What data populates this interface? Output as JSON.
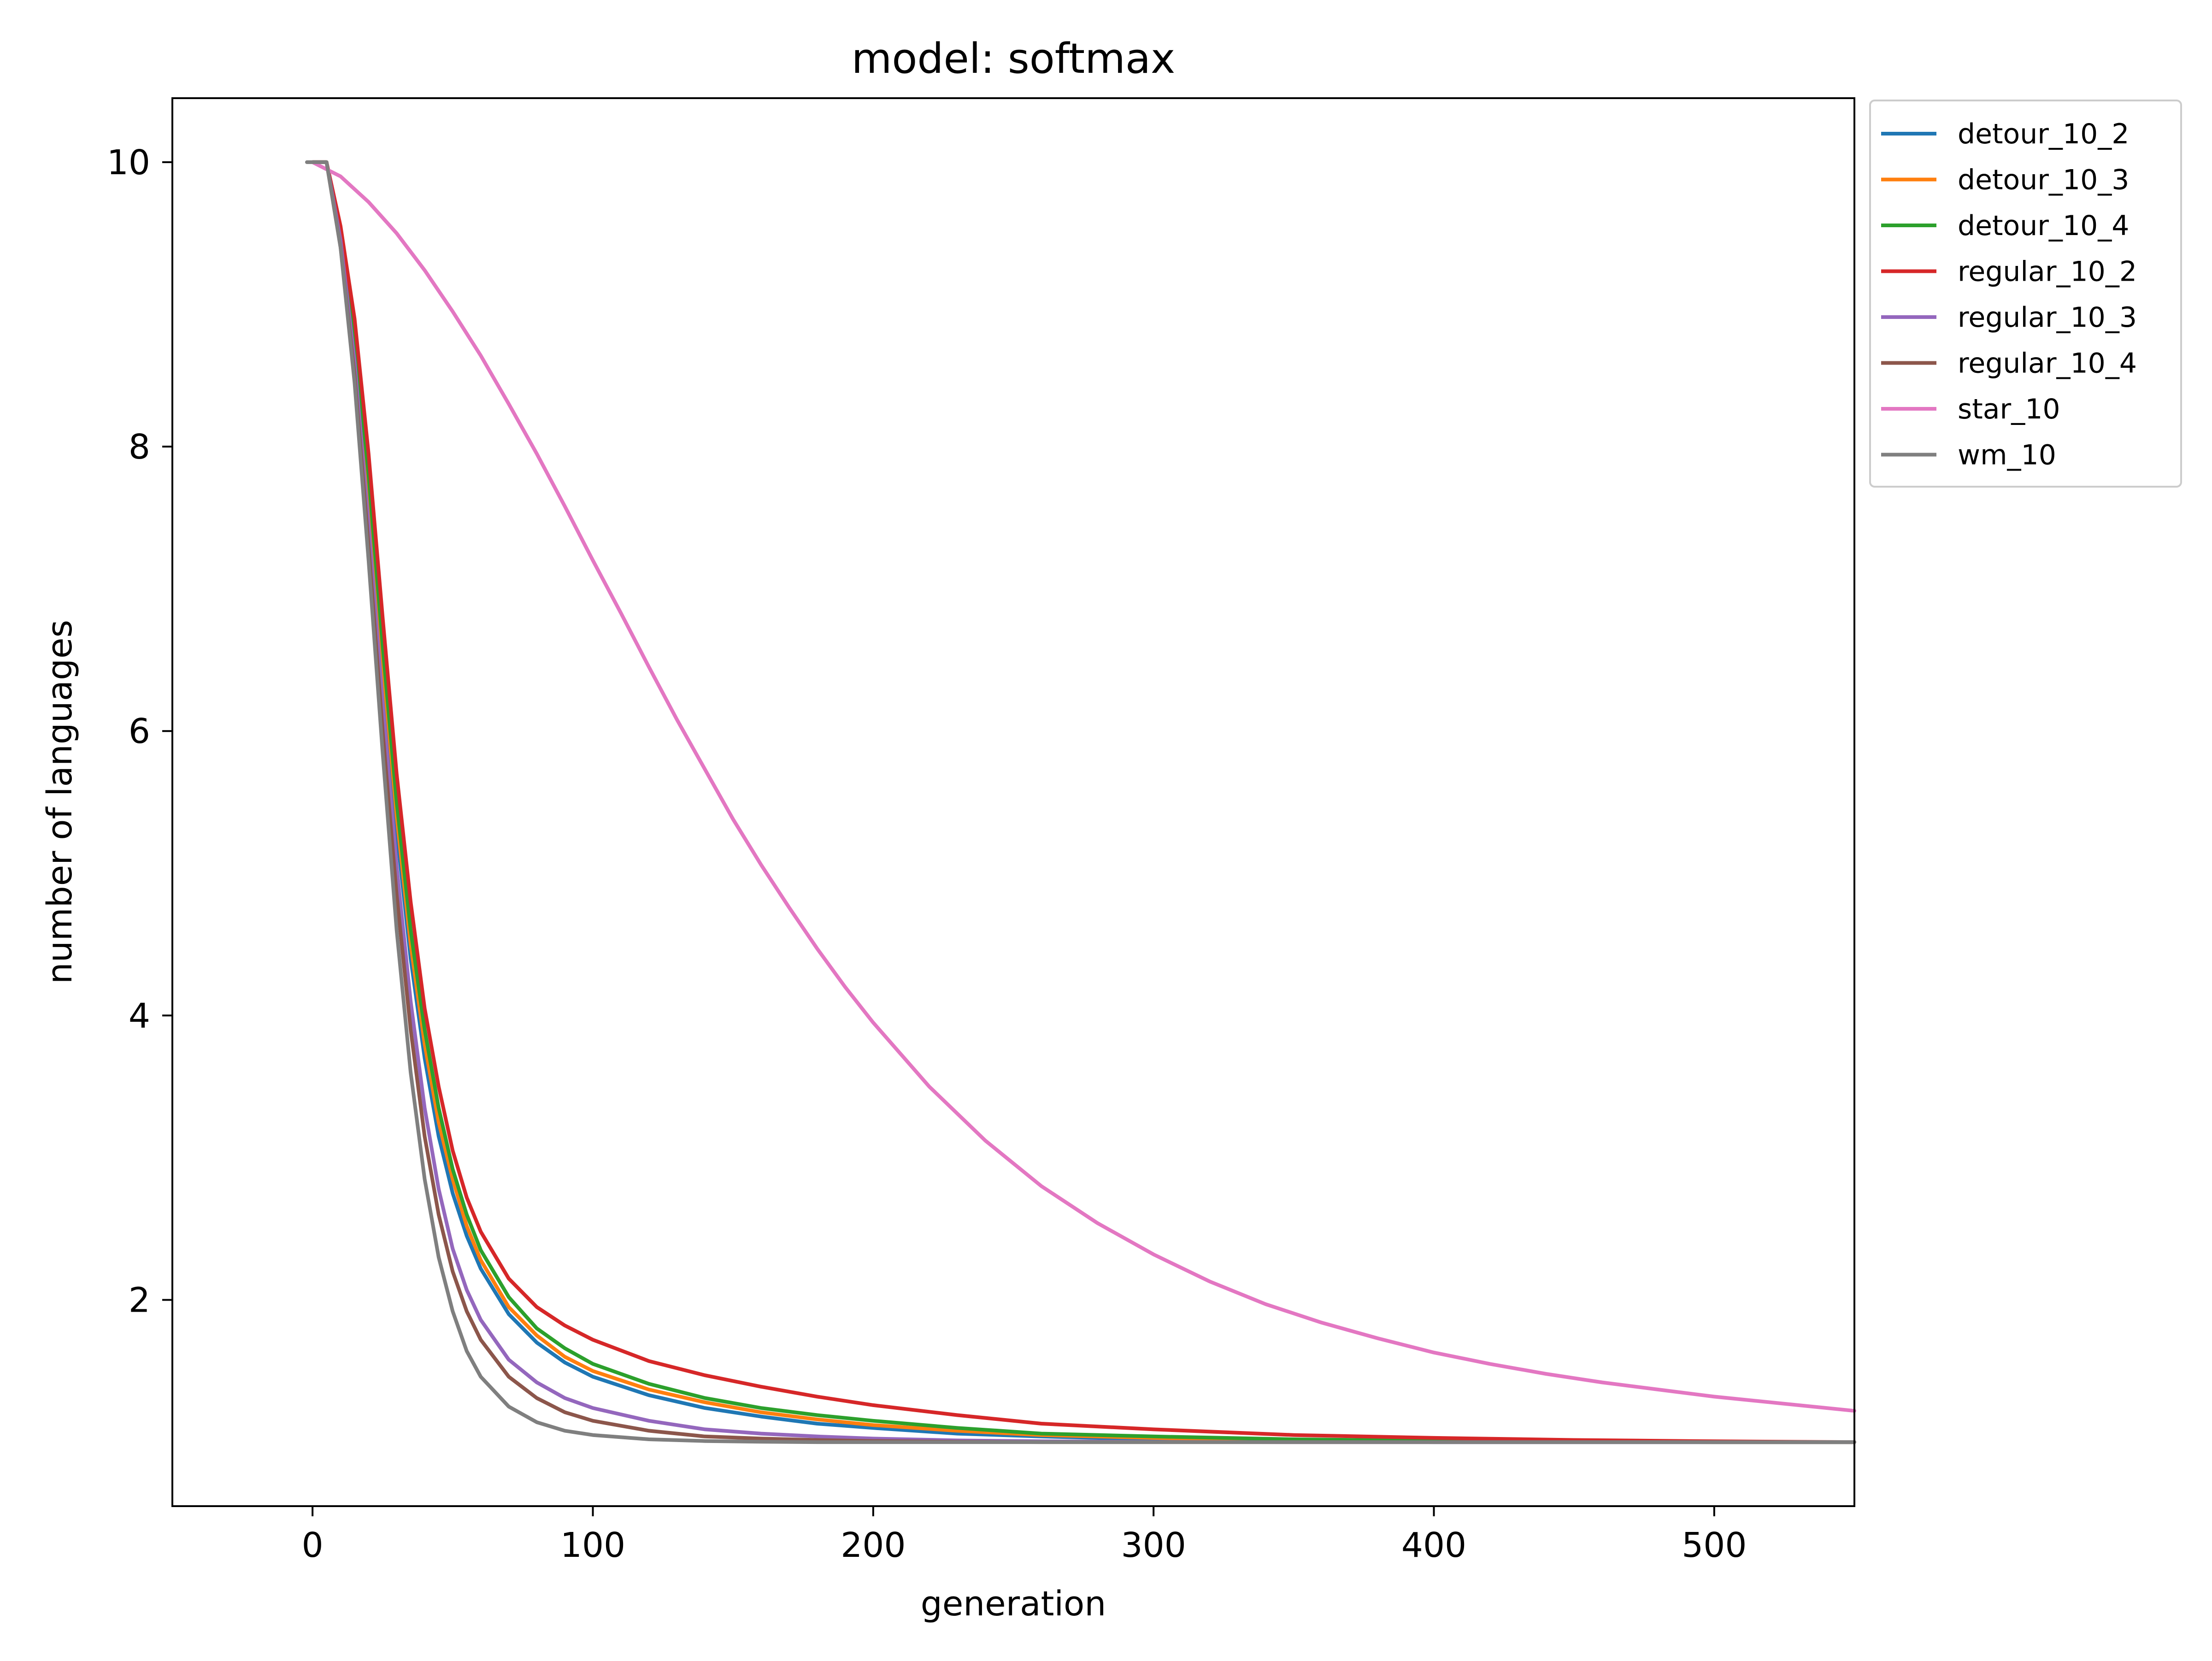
{
  "chart_data": {
    "type": "line",
    "title": "model: softmax",
    "xlabel": "generation",
    "ylabel": "number of languages",
    "xlim": [
      -50,
      550
    ],
    "ylim": [
      0.55,
      10.45
    ],
    "xticks": [
      0,
      100,
      200,
      300,
      400,
      500
    ],
    "yticks": [
      2,
      4,
      6,
      8,
      10
    ],
    "grid": false,
    "legend_placement": "outside-right-top",
    "series": [
      {
        "name": "detour_10_2",
        "color": "#1f77b4",
        "points": [
          [
            0,
            10
          ],
          [
            5,
            10
          ],
          [
            10,
            9.5
          ],
          [
            15,
            8.7
          ],
          [
            20,
            7.6
          ],
          [
            25,
            6.4
          ],
          [
            30,
            5.3
          ],
          [
            35,
            4.4
          ],
          [
            40,
            3.7
          ],
          [
            45,
            3.15
          ],
          [
            50,
            2.75
          ],
          [
            55,
            2.45
          ],
          [
            60,
            2.22
          ],
          [
            70,
            1.9
          ],
          [
            80,
            1.7
          ],
          [
            90,
            1.56
          ],
          [
            100,
            1.46
          ],
          [
            120,
            1.33
          ],
          [
            140,
            1.24
          ],
          [
            160,
            1.18
          ],
          [
            180,
            1.13
          ],
          [
            200,
            1.1
          ],
          [
            230,
            1.06
          ],
          [
            260,
            1.04
          ],
          [
            300,
            1.02
          ],
          [
            350,
            1.01
          ],
          [
            400,
            1.0
          ],
          [
            450,
            1.0
          ],
          [
            500,
            1.0
          ],
          [
            550,
            1.0
          ]
        ]
      },
      {
        "name": "detour_10_3",
        "color": "#ff7f0e",
        "points": [
          [
            0,
            10
          ],
          [
            5,
            10
          ],
          [
            10,
            9.5
          ],
          [
            15,
            8.75
          ],
          [
            20,
            7.7
          ],
          [
            25,
            6.5
          ],
          [
            30,
            5.4
          ],
          [
            35,
            4.5
          ],
          [
            40,
            3.8
          ],
          [
            45,
            3.25
          ],
          [
            50,
            2.85
          ],
          [
            55,
            2.52
          ],
          [
            60,
            2.28
          ],
          [
            70,
            1.95
          ],
          [
            80,
            1.75
          ],
          [
            90,
            1.6
          ],
          [
            100,
            1.5
          ],
          [
            120,
            1.37
          ],
          [
            140,
            1.28
          ],
          [
            160,
            1.21
          ],
          [
            180,
            1.16
          ],
          [
            200,
            1.12
          ],
          [
            230,
            1.08
          ],
          [
            260,
            1.05
          ],
          [
            300,
            1.03
          ],
          [
            350,
            1.015
          ],
          [
            400,
            1.007
          ],
          [
            450,
            1.003
          ],
          [
            500,
            1.0
          ],
          [
            550,
            1.0
          ]
        ]
      },
      {
        "name": "detour_10_4",
        "color": "#2ca02c",
        "points": [
          [
            0,
            10
          ],
          [
            5,
            10
          ],
          [
            10,
            9.5
          ],
          [
            15,
            8.8
          ],
          [
            20,
            7.8
          ],
          [
            25,
            6.6
          ],
          [
            30,
            5.5
          ],
          [
            35,
            4.6
          ],
          [
            40,
            3.9
          ],
          [
            45,
            3.35
          ],
          [
            50,
            2.92
          ],
          [
            55,
            2.6
          ],
          [
            60,
            2.35
          ],
          [
            70,
            2.02
          ],
          [
            80,
            1.8
          ],
          [
            90,
            1.66
          ],
          [
            100,
            1.55
          ],
          [
            120,
            1.41
          ],
          [
            140,
            1.31
          ],
          [
            160,
            1.24
          ],
          [
            180,
            1.19
          ],
          [
            200,
            1.15
          ],
          [
            230,
            1.1
          ],
          [
            260,
            1.06
          ],
          [
            300,
            1.04
          ],
          [
            350,
            1.02
          ],
          [
            400,
            1.01
          ],
          [
            450,
            1.004
          ],
          [
            500,
            1.0
          ],
          [
            550,
            1.0
          ]
        ]
      },
      {
        "name": "regular_10_2",
        "color": "#d62728",
        "points": [
          [
            0,
            10
          ],
          [
            5,
            10
          ],
          [
            10,
            9.55
          ],
          [
            15,
            8.9
          ],
          [
            20,
            7.95
          ],
          [
            25,
            6.8
          ],
          [
            30,
            5.7
          ],
          [
            35,
            4.8
          ],
          [
            40,
            4.05
          ],
          [
            45,
            3.5
          ],
          [
            50,
            3.05
          ],
          [
            55,
            2.72
          ],
          [
            60,
            2.48
          ],
          [
            70,
            2.15
          ],
          [
            80,
            1.95
          ],
          [
            90,
            1.82
          ],
          [
            100,
            1.72
          ],
          [
            120,
            1.57
          ],
          [
            140,
            1.47
          ],
          [
            160,
            1.39
          ],
          [
            180,
            1.32
          ],
          [
            200,
            1.26
          ],
          [
            230,
            1.19
          ],
          [
            260,
            1.13
          ],
          [
            300,
            1.09
          ],
          [
            350,
            1.05
          ],
          [
            400,
            1.03
          ],
          [
            450,
            1.015
          ],
          [
            500,
            1.006
          ],
          [
            550,
            1.0
          ]
        ]
      },
      {
        "name": "regular_10_3",
        "color": "#9467bd",
        "points": [
          [
            0,
            10
          ],
          [
            5,
            10
          ],
          [
            10,
            9.45
          ],
          [
            15,
            8.6
          ],
          [
            20,
            7.45
          ],
          [
            25,
            6.2
          ],
          [
            30,
            5.05
          ],
          [
            35,
            4.1
          ],
          [
            40,
            3.35
          ],
          [
            45,
            2.78
          ],
          [
            50,
            2.36
          ],
          [
            55,
            2.07
          ],
          [
            60,
            1.86
          ],
          [
            70,
            1.58
          ],
          [
            80,
            1.42
          ],
          [
            90,
            1.31
          ],
          [
            100,
            1.24
          ],
          [
            120,
            1.15
          ],
          [
            140,
            1.09
          ],
          [
            160,
            1.06
          ],
          [
            180,
            1.04
          ],
          [
            200,
            1.025
          ],
          [
            230,
            1.012
          ],
          [
            260,
            1.006
          ],
          [
            300,
            1.002
          ],
          [
            350,
            1.0
          ],
          [
            400,
            1.0
          ],
          [
            450,
            1.0
          ],
          [
            500,
            1.0
          ],
          [
            550,
            1.0
          ]
        ]
      },
      {
        "name": "regular_10_4",
        "color": "#8c564b",
        "points": [
          [
            0,
            10
          ],
          [
            5,
            10
          ],
          [
            10,
            9.4
          ],
          [
            15,
            8.5
          ],
          [
            20,
            7.3
          ],
          [
            25,
            6.0
          ],
          [
            30,
            4.85
          ],
          [
            35,
            3.9
          ],
          [
            40,
            3.15
          ],
          [
            45,
            2.6
          ],
          [
            50,
            2.2
          ],
          [
            55,
            1.92
          ],
          [
            60,
            1.72
          ],
          [
            70,
            1.46
          ],
          [
            80,
            1.31
          ],
          [
            90,
            1.21
          ],
          [
            100,
            1.15
          ],
          [
            120,
            1.08
          ],
          [
            140,
            1.04
          ],
          [
            160,
            1.025
          ],
          [
            180,
            1.015
          ],
          [
            200,
            1.008
          ],
          [
            230,
            1.003
          ],
          [
            260,
            1.0
          ],
          [
            300,
            1.0
          ],
          [
            350,
            1.0
          ],
          [
            400,
            1.0
          ],
          [
            450,
            1.0
          ],
          [
            500,
            1.0
          ],
          [
            550,
            1.0
          ]
        ]
      },
      {
        "name": "star_10",
        "color": "#e377c2",
        "points": [
          [
            0,
            10
          ],
          [
            10,
            9.9
          ],
          [
            20,
            9.72
          ],
          [
            30,
            9.5
          ],
          [
            40,
            9.24
          ],
          [
            50,
            8.95
          ],
          [
            60,
            8.64
          ],
          [
            70,
            8.3
          ],
          [
            80,
            7.95
          ],
          [
            90,
            7.58
          ],
          [
            100,
            7.2
          ],
          [
            110,
            6.83
          ],
          [
            120,
            6.45
          ],
          [
            130,
            6.08
          ],
          [
            140,
            5.73
          ],
          [
            150,
            5.38
          ],
          [
            160,
            5.06
          ],
          [
            170,
            4.76
          ],
          [
            180,
            4.47
          ],
          [
            190,
            4.2
          ],
          [
            200,
            3.95
          ],
          [
            220,
            3.5
          ],
          [
            240,
            3.12
          ],
          [
            260,
            2.8
          ],
          [
            280,
            2.54
          ],
          [
            300,
            2.32
          ],
          [
            320,
            2.13
          ],
          [
            340,
            1.97
          ],
          [
            360,
            1.84
          ],
          [
            380,
            1.73
          ],
          [
            400,
            1.63
          ],
          [
            420,
            1.55
          ],
          [
            440,
            1.48
          ],
          [
            460,
            1.42
          ],
          [
            480,
            1.37
          ],
          [
            500,
            1.32
          ],
          [
            520,
            1.28
          ],
          [
            550,
            1.22
          ]
        ]
      },
      {
        "name": "wm_10",
        "color": "#7f7f7f",
        "points": [
          [
            -2,
            10
          ],
          [
            5,
            10
          ],
          [
            10,
            9.4
          ],
          [
            15,
            8.45
          ],
          [
            20,
            7.2
          ],
          [
            25,
            5.85
          ],
          [
            30,
            4.6
          ],
          [
            35,
            3.6
          ],
          [
            40,
            2.85
          ],
          [
            45,
            2.3
          ],
          [
            50,
            1.92
          ],
          [
            55,
            1.64
          ],
          [
            60,
            1.46
          ],
          [
            70,
            1.25
          ],
          [
            80,
            1.14
          ],
          [
            90,
            1.08
          ],
          [
            100,
            1.05
          ],
          [
            120,
            1.02
          ],
          [
            140,
            1.008
          ],
          [
            160,
            1.003
          ],
          [
            180,
            1.0
          ],
          [
            200,
            1.0
          ],
          [
            250,
            1.0
          ],
          [
            300,
            1.0
          ],
          [
            400,
            1.0
          ],
          [
            500,
            1.0
          ],
          [
            550,
            1.0
          ]
        ]
      }
    ]
  }
}
